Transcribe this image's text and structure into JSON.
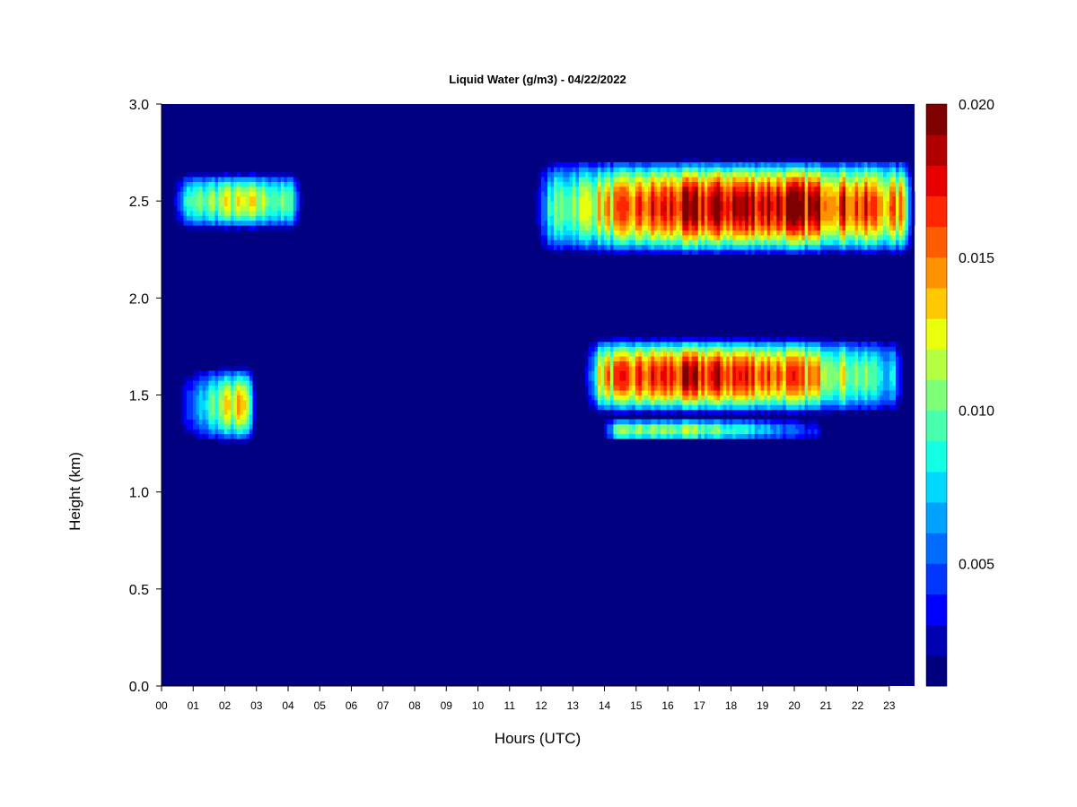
{
  "chart_data": {
    "type": "heatmap",
    "title": "Liquid Water (g/m3) - 04/22/2022",
    "xlabel": "Hours (UTC)",
    "ylabel": "Height (km)",
    "xlim": [
      0,
      23.8
    ],
    "ylim": [
      0.0,
      3.0
    ],
    "x_ticks": [
      "00",
      "01",
      "02",
      "03",
      "04",
      "05",
      "06",
      "07",
      "08",
      "09",
      "10",
      "11",
      "12",
      "13",
      "14",
      "15",
      "16",
      "17",
      "18",
      "19",
      "20",
      "21",
      "22",
      "23"
    ],
    "y_ticks": [
      "0.0",
      "0.5",
      "1.0",
      "1.5",
      "2.0",
      "2.5",
      "3.0"
    ],
    "colorbar": {
      "range": [
        0.001,
        0.02
      ],
      "ticks": [
        "0.005",
        "0.010",
        "0.015",
        "0.020"
      ],
      "colors": [
        "#00007f",
        "#0000b3",
        "#0000ff",
        "#0036ff",
        "#006cff",
        "#00a2ff",
        "#00d8ff",
        "#12ffe4",
        "#48ffae",
        "#7eff78",
        "#b4ff42",
        "#eaff0c",
        "#ffc800",
        "#ff9200",
        "#ff5c00",
        "#ff2600",
        "#e80000",
        "#b20000",
        "#7f0000"
      ],
      "background": "#000080"
    },
    "cloud_regions": [
      {
        "name": "upper layer",
        "x_range": [
          11.7,
          23.8
        ],
        "y_center": 2.47,
        "y_half_thickness": 0.25,
        "peak": 0.019,
        "peak_x": 18.8
      },
      {
        "name": "lower layer",
        "x_range": [
          13.3,
          23.5
        ],
        "y_center": 1.6,
        "y_half_thickness": 0.2,
        "peak": 0.0175,
        "peak_x": 17.3
      },
      {
        "name": "lower layer base",
        "x_range": [
          13.8,
          21.0
        ],
        "y_center": 1.32,
        "y_half_thickness": 0.06,
        "peak": 0.011,
        "peak_x": 16.0
      },
      {
        "name": "early upper",
        "x_range": [
          0.2,
          4.5
        ],
        "y_center": 2.5,
        "y_half_thickness": 0.15,
        "peak": 0.012,
        "peak_x": 2.5
      },
      {
        "name": "early lower",
        "x_range": [
          0.3,
          3.0
        ],
        "y_center": 1.45,
        "y_half_thickness": 0.2,
        "peak": 0.013,
        "peak_x": 2.6
      }
    ]
  }
}
